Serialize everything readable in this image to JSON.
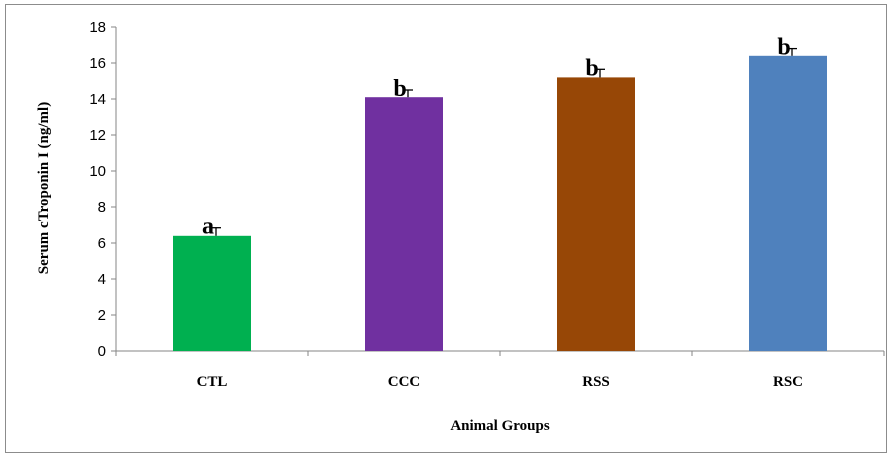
{
  "chart_data": {
    "type": "bar",
    "categories": [
      "CTL",
      "CCC",
      "RSS",
      "RSC"
    ],
    "values": [
      6.4,
      14.1,
      15.2,
      16.4
    ],
    "error": [
      0.45,
      0.4,
      0.45,
      0.4
    ],
    "significance": [
      "a",
      "b",
      "b",
      "b"
    ],
    "colors": [
      "#00b050",
      "#7030a0",
      "#974706",
      "#4f81bd"
    ],
    "xlabel": "Animal Groups",
    "ylabel": "Serum cTroponin I (ng/ml)",
    "ylim": [
      0,
      18
    ],
    "yticks": [
      0,
      2,
      4,
      6,
      8,
      10,
      12,
      14,
      16,
      18
    ],
    "grid": false,
    "legend": "none"
  }
}
